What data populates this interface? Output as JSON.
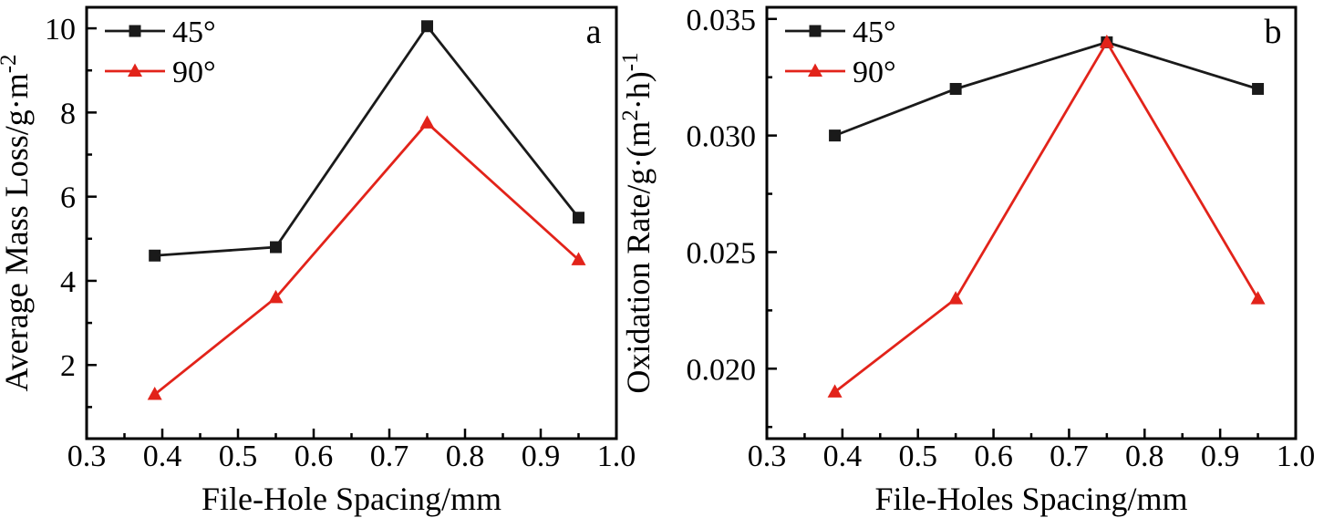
{
  "figure": {
    "background": "#ffffff",
    "text_color": "#000000",
    "frame_color": "#000000"
  },
  "chart_data": [
    {
      "type": "line",
      "panel_label": "a",
      "title": "",
      "xlabel": "File-Hole Spacing/mm",
      "ylabel": "Average Mass Loss/g·m^{-2}",
      "xlim": [
        0.3,
        1.0
      ],
      "ylim": [
        0.25,
        10.5
      ],
      "grid": false,
      "legend_position": "top-left",
      "x_major_ticks": [
        0.3,
        0.4,
        0.5,
        0.6,
        0.7,
        0.8,
        0.9,
        1.0
      ],
      "x_tick_labels": [
        "0.3",
        "0.4",
        "0.5",
        "0.6",
        "0.7",
        "0.8",
        "0.9",
        "1.0"
      ],
      "x_minor_ticks": [
        0.35,
        0.45,
        0.55,
        0.65,
        0.75,
        0.85,
        0.95
      ],
      "y_major_ticks": [
        2,
        4,
        6,
        8,
        10
      ],
      "y_tick_labels": [
        "2",
        "4",
        "6",
        "8",
        "10"
      ],
      "y_minor_ticks": [
        1,
        3,
        5,
        7,
        9
      ],
      "x": [
        0.39,
        0.55,
        0.75,
        0.95
      ],
      "series": [
        {
          "name": "45°",
          "color": "#1a1a1a",
          "marker": "square",
          "values": [
            4.6,
            4.8,
            10.05,
            5.5
          ]
        },
        {
          "name": "90°",
          "color": "#e2231a",
          "marker": "triangle",
          "values": [
            1.3,
            3.6,
            7.75,
            4.5
          ]
        }
      ]
    },
    {
      "type": "line",
      "panel_label": "b",
      "title": "",
      "xlabel": "File-Holes Spacing/mm",
      "ylabel": "Oxidation Rate/g·(m^{2}·h)^{-1}",
      "xlim": [
        0.3,
        1.0
      ],
      "ylim": [
        0.017,
        0.0355
      ],
      "grid": false,
      "legend_position": "top-left",
      "x_major_ticks": [
        0.3,
        0.4,
        0.5,
        0.6,
        0.7,
        0.8,
        0.9,
        1.0
      ],
      "x_tick_labels": [
        "0.3",
        "0.4",
        "0.5",
        "0.6",
        "0.7",
        "0.8",
        "0.9",
        "1.0"
      ],
      "x_minor_ticks": [
        0.35,
        0.45,
        0.55,
        0.65,
        0.75,
        0.85,
        0.95
      ],
      "y_major_ticks": [
        0.02,
        0.025,
        0.03,
        0.035
      ],
      "y_tick_labels": [
        "0.020",
        "0.025",
        "0.030",
        "0.035"
      ],
      "y_minor_ticks": [
        0.0175,
        0.0225,
        0.0275,
        0.0325
      ],
      "x": [
        0.39,
        0.55,
        0.75,
        0.95
      ],
      "series": [
        {
          "name": "45°",
          "color": "#1a1a1a",
          "marker": "square",
          "values": [
            0.03,
            0.032,
            0.034,
            0.032
          ]
        },
        {
          "name": "90°",
          "color": "#e2231a",
          "marker": "triangle",
          "values": [
            0.019,
            0.023,
            0.034,
            0.023
          ]
        }
      ]
    }
  ]
}
